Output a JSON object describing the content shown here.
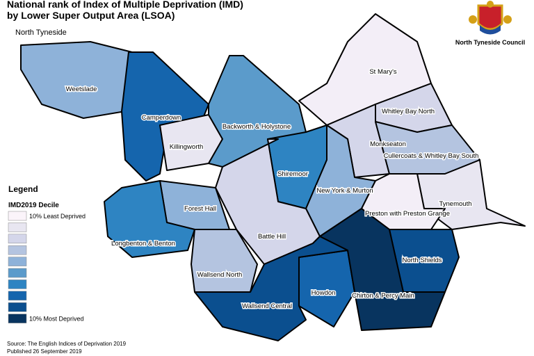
{
  "header": {
    "title_line1": "National rank of Index of Multiple Deprivation (IMD)",
    "title_line2": "by Lower Super Output Area (LSOA)",
    "area": "North Tyneside",
    "council": "North Tyneside Council"
  },
  "legend": {
    "title": "Legend",
    "subtitle": "IMD2019 Decile",
    "colors": [
      "#fbf4fa",
      "#e8e6f1",
      "#d4d6ea",
      "#b4c4e0",
      "#8eb2d9",
      "#5b9bcb",
      "#2e84c2",
      "#1565ad",
      "#0b4f8f",
      "#08345f"
    ],
    "least": "10% Least Deprived",
    "most": "10% Most Deprived"
  },
  "wards": [
    "Weetslade",
    "Camperdown",
    "Killingworth",
    "Backworth & Holystone",
    "St Mary's",
    "Whitley Bay North",
    "Monkseaton",
    "Cullercoats & Whitley Bay South",
    "Shiremoor",
    "New York & Murton",
    "Tynemouth",
    "Preston with Preston Grange",
    "Forest Hall",
    "Battle Hill",
    "Longbenton & Benton",
    "North Shields",
    "Wallsend North",
    "Howdon",
    "Chirton & Percy Main",
    "Wallsend Central"
  ],
  "footer": {
    "source": "Source: The English Indices of Deprivation 2019",
    "published": "Published 26 September 2019"
  }
}
